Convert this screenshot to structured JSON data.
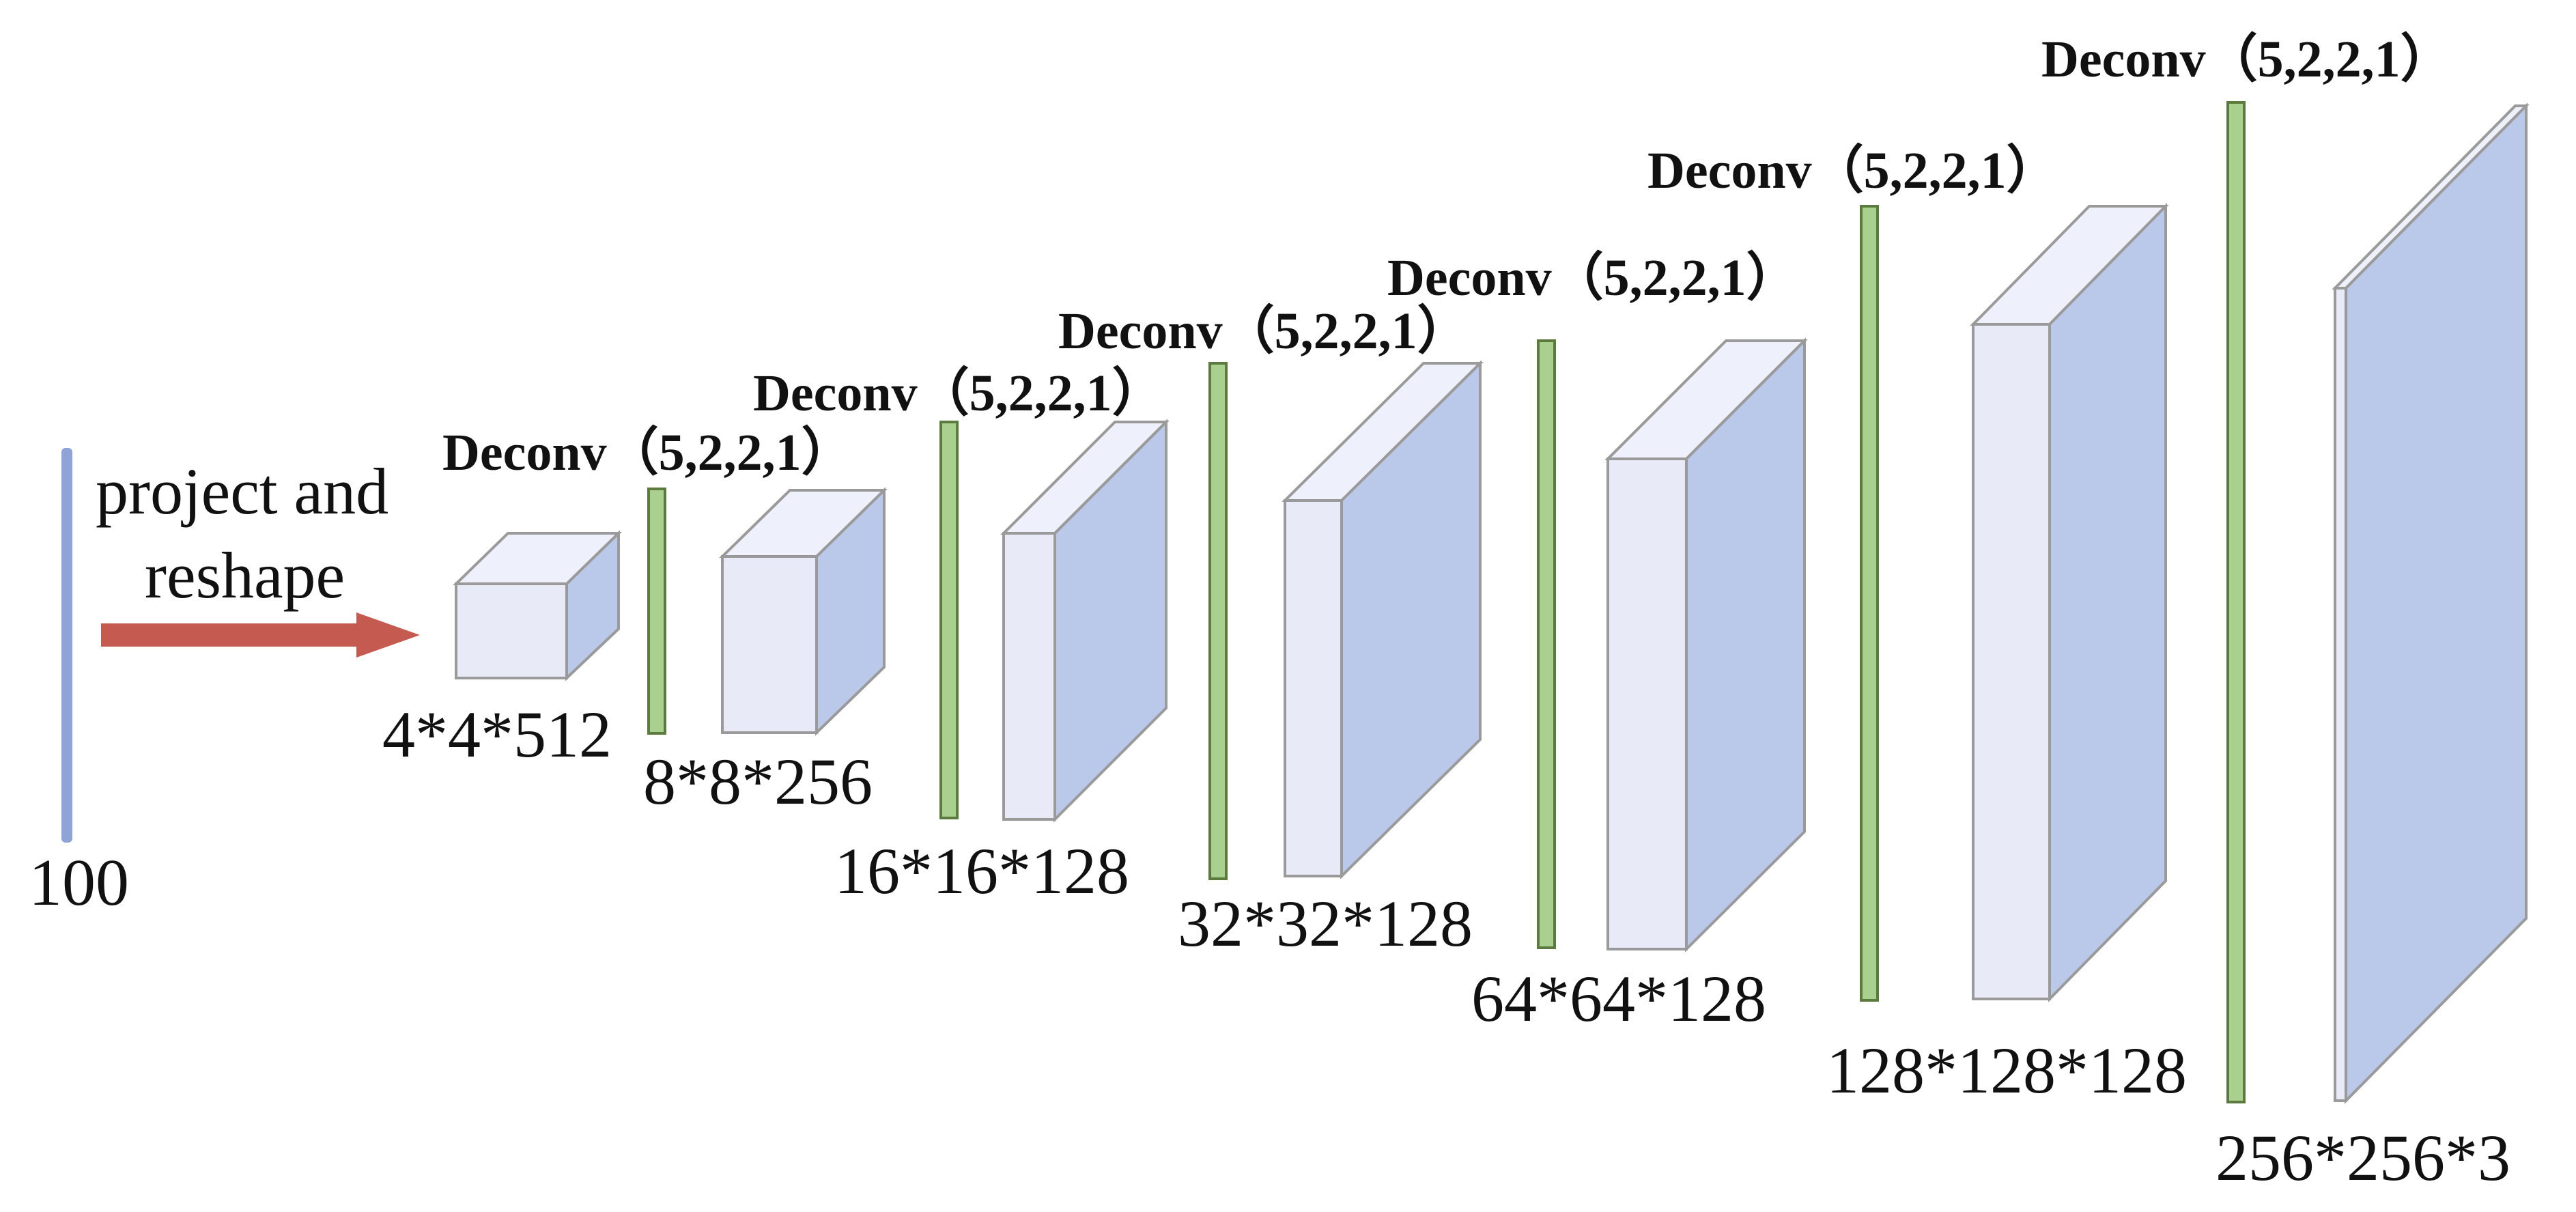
{
  "input": {
    "label": "100",
    "colors": {
      "bar": "#8ea3d6"
    }
  },
  "projection": {
    "line1": "project and",
    "line2": "reshape",
    "arrow_color": "#c55a50"
  },
  "deconv_label": "Deconv（5,2,2,1）",
  "layers": [
    {
      "dim": "4*4*512",
      "deconv": "Deconv（5,2,2,1）"
    },
    {
      "dim": "8*8*256",
      "deconv": "Deconv（5,2,2,1）"
    },
    {
      "dim": "16*16*128",
      "deconv": "Deconv（5,2,2,1）"
    },
    {
      "dim": "32*32*128",
      "deconv": "Deconv（5,2,2,1）"
    },
    {
      "dim": "64*64*128",
      "deconv": "Deconv（5,2,2,1）"
    },
    {
      "dim": "128*128*128",
      "deconv": "Deconv（5,2,2,1）"
    },
    {
      "dim": "256*256*3"
    }
  ],
  "colors": {
    "front": "#e8ebf7",
    "top": "#eef0fb",
    "side": "#bac9e9",
    "edge": "#9a9a9a",
    "bar": "#a9d08e"
  }
}
